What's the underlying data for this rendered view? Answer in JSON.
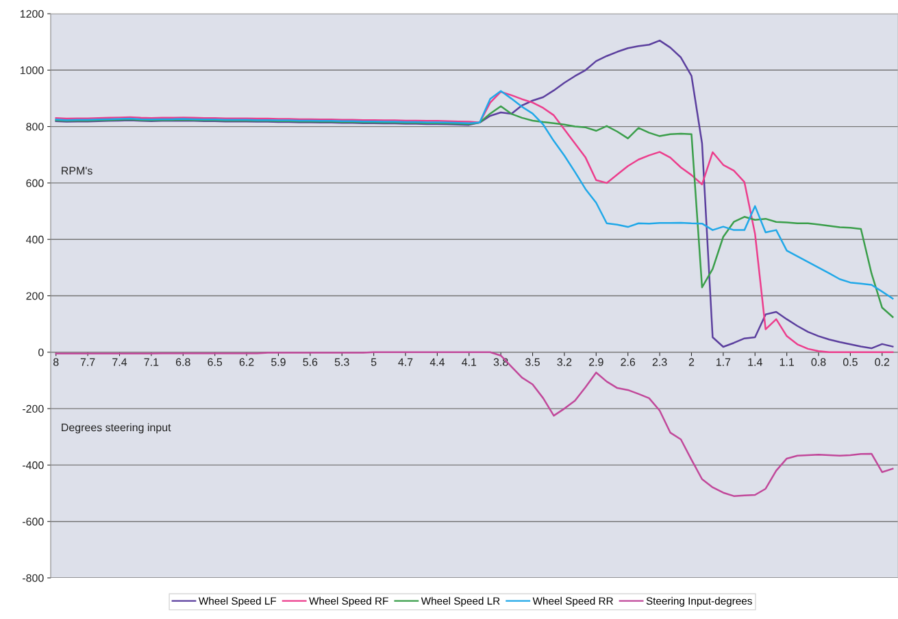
{
  "chart_data": {
    "type": "line",
    "categories": [
      "8",
      null,
      null,
      "7.7",
      null,
      null,
      "7.4",
      null,
      null,
      "7.1",
      null,
      null,
      "6.8",
      null,
      null,
      "6.5",
      null,
      null,
      "6.2",
      null,
      null,
      "5.9",
      null,
      null,
      "5.6",
      null,
      null,
      "5.3",
      null,
      null,
      "5",
      null,
      null,
      "4.7",
      null,
      null,
      "4.4",
      null,
      null,
      "4.1",
      null,
      null,
      "3.8",
      null,
      null,
      "3.5",
      null,
      null,
      "3.2",
      null,
      null,
      "2.9",
      null,
      null,
      "2.6",
      null,
      null,
      "2.3",
      null,
      null,
      "2",
      null,
      null,
      "1.7",
      null,
      null,
      "1.4",
      null,
      null,
      "1.1",
      null,
      null,
      "0.8",
      null,
      null,
      "0.5",
      null,
      null,
      "0.2",
      null
    ],
    "series": [
      {
        "name": "Wheel Speed LF",
        "color": "#5b3f9e",
        "values": [
          819,
          817,
          818,
          818,
          819,
          820,
          821,
          822,
          820,
          819,
          820,
          820,
          821,
          820,
          819,
          819,
          818,
          818,
          818,
          817,
          817,
          816,
          816,
          815,
          815,
          814,
          814,
          813,
          813,
          812,
          812,
          811,
          811,
          810,
          810,
          809,
          809,
          808,
          807,
          806,
          814,
          838,
          850,
          845,
          875,
          892,
          904,
          928,
          955,
          979,
          1000,
          1032,
          1050,
          1065,
          1078,
          1085,
          1090,
          1105,
          1080,
          1045,
          980,
          740,
          53,
          19,
          33,
          49,
          53,
          134,
          143,
          117,
          93,
          72,
          57,
          45,
          36,
          28,
          20,
          14,
          29,
          20
        ]
      },
      {
        "name": "Wheel Speed RF",
        "color": "#ec3d8c",
        "values": [
          830,
          828,
          829,
          829,
          830,
          831,
          832,
          833,
          831,
          830,
          831,
          831,
          832,
          831,
          830,
          830,
          829,
          829,
          829,
          828,
          828,
          827,
          827,
          826,
          826,
          825,
          825,
          824,
          824,
          823,
          823,
          822,
          822,
          821,
          821,
          820,
          820,
          819,
          818,
          817,
          814,
          885,
          923,
          911,
          897,
          885,
          866,
          840,
          790,
          740,
          690,
          610,
          600,
          630,
          660,
          683,
          698,
          710,
          690,
          655,
          628,
          595,
          709,
          664,
          644,
          603,
          420,
          81,
          117,
          57,
          28,
          12,
          4,
          0,
          0,
          0,
          0,
          0,
          0,
          0
        ]
      },
      {
        "name": "Wheel Speed LR",
        "color": "#3a9e4a",
        "values": [
          822,
          820,
          821,
          821,
          822,
          823,
          824,
          825,
          823,
          822,
          823,
          823,
          824,
          823,
          822,
          822,
          821,
          821,
          821,
          820,
          820,
          819,
          819,
          818,
          818,
          817,
          817,
          816,
          816,
          815,
          815,
          814,
          814,
          813,
          813,
          812,
          812,
          811,
          810,
          809,
          814,
          846,
          872,
          845,
          831,
          821,
          816,
          812,
          807,
          800,
          797,
          785,
          802,
          782,
          758,
          795,
          778,
          766,
          773,
          775,
          773,
          230,
          295,
          409,
          462,
          480,
          469,
          473,
          462,
          460,
          457,
          457,
          453,
          448,
          443,
          441,
          437,
          279,
          158,
          125
        ]
      },
      {
        "name": "Wheel Speed RR",
        "color": "#20a8e8",
        "values": [
          825,
          823,
          824,
          824,
          825,
          826,
          827,
          828,
          826,
          825,
          826,
          826,
          827,
          826,
          825,
          825,
          824,
          824,
          824,
          823,
          823,
          822,
          822,
          821,
          821,
          820,
          820,
          819,
          819,
          818,
          818,
          817,
          817,
          816,
          816,
          815,
          815,
          814,
          813,
          812,
          814,
          898,
          926,
          899,
          870,
          846,
          807,
          749,
          697,
          639,
          578,
          530,
          457,
          452,
          444,
          457,
          456,
          458,
          458,
          459,
          457,
          456,
          433,
          445,
          433,
          433,
          518,
          425,
          433,
          360,
          340,
          320,
          300,
          280,
          259,
          247,
          243,
          239,
          215,
          190
        ]
      },
      {
        "name": "Steering Input-degrees",
        "color": "#c1489a",
        "values": [
          -5,
          -5,
          -5,
          -5,
          -5,
          -5,
          -5,
          -5,
          -5,
          -5,
          -4,
          -4,
          -4,
          -4,
          -4,
          -4,
          -4,
          -4,
          -4,
          -4,
          -2,
          -2,
          -2,
          -2,
          -2,
          -2,
          -2,
          -2,
          -2,
          -2,
          0,
          0,
          0,
          0,
          0,
          0,
          0,
          0,
          0,
          0,
          0,
          0,
          -12,
          -51,
          -90,
          -114,
          -163,
          -225,
          -200,
          -172,
          -124,
          -72,
          -104,
          -127,
          -134,
          -148,
          -163,
          -207,
          -285,
          -309,
          -381,
          -450,
          -479,
          -498,
          -510,
          -508,
          -506,
          -484,
          -420,
          -377,
          -367,
          -365,
          -363,
          -365,
          -367,
          -365,
          -361,
          -360,
          -425,
          -413
        ]
      }
    ],
    "ylim": [
      -800,
      1200
    ],
    "yticks": [
      -800,
      -600,
      -400,
      -200,
      0,
      200,
      400,
      600,
      800,
      1000,
      1200
    ],
    "grid": "y",
    "legend": "bottom",
    "marker": "none",
    "line_style": "solid",
    "annotations": [
      "RPM's",
      "Degrees steering input"
    ]
  }
}
